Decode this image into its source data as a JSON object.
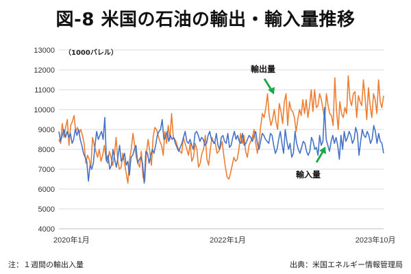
{
  "chart_data": {
    "type": "line",
    "title": "図-8 米国の石油の輸出・輸入量推移",
    "unit_label": "（1000バレル）",
    "ylim": [
      4000,
      13000
    ],
    "y_ticks": [
      "4000",
      "5000",
      "6000",
      "7000",
      "8000",
      "9000",
      "10000",
      "11000",
      "12000",
      "13000"
    ],
    "x_range": [
      0,
      200
    ],
    "x_ticks": [
      {
        "label": "2020年1月",
        "week": 0
      },
      {
        "label": "2022年1月",
        "week": 104
      },
      {
        "label": "2023年10月",
        "week": 195
      }
    ],
    "grid": true,
    "series": [
      {
        "name": "輸出量",
        "color": "#ed7d31",
        "values": [
          8500,
          8300,
          9300,
          8600,
          9100,
          9500,
          8200,
          9200,
          9400,
          9700,
          8900,
          9100,
          8800,
          9000,
          8700,
          8300,
          7300,
          7700,
          7500,
          7100,
          8600,
          8200,
          7900,
          7600,
          8000,
          7400,
          7700,
          8200,
          7500,
          7300,
          7900,
          7600,
          7200,
          7700,
          8600,
          7400,
          7000,
          7100,
          7800,
          7300,
          6800,
          6300,
          7500,
          8000,
          8800,
          8200,
          7600,
          7300,
          7100,
          7900,
          6600,
          6400,
          7800,
          8500,
          7900,
          7200,
          8600,
          9100,
          9000,
          8700,
          8400,
          8200,
          7700,
          8900,
          8300,
          9200,
          8500,
          9800,
          8600,
          8500,
          8300,
          8000,
          7900,
          7800,
          8600,
          8300,
          8000,
          7700,
          8300,
          7400,
          7600,
          8300,
          8000,
          7100,
          7300,
          7800,
          8000,
          8700,
          7500,
          7200,
          8000,
          8600,
          8300,
          8300,
          7800,
          7900,
          8100,
          8400,
          7700,
          7100,
          6600,
          6500,
          6800,
          7200,
          7600,
          7400,
          7500,
          8000,
          8800,
          8300,
          8700,
          7900,
          7600,
          8200,
          8400,
          8600,
          9000,
          8300,
          7800,
          8400,
          9200,
          9800,
          9600,
          10100,
          10800,
          9700,
          9200,
          9500,
          10000,
          9400,
          9000,
          10300,
          9900,
          9300,
          10400,
          10800,
          9200,
          10400,
          10000,
          9900,
          9600,
          8900,
          9500,
          10000,
          9700,
          10500,
          9800,
          10500,
          9600,
          10200,
          11000,
          9900,
          11000,
          10100,
          10200,
          10800,
          10500,
          10000,
          9500,
          10800,
          10200,
          9800,
          9700,
          9200,
          11600,
          10000,
          9000,
          10400,
          9800,
          9600,
          10100,
          9800,
          11700,
          10500,
          10200,
          10800,
          10900,
          9600,
          10700,
          10400,
          10200,
          11500,
          10600,
          9500,
          11100,
          10200,
          9600,
          10800,
          10500,
          9800,
          11500,
          10400,
          10100,
          10700
        ]
      },
      {
        "name": "輸入量",
        "color": "#4472c4",
        "values": [
          8900,
          8400,
          8700,
          9000,
          8600,
          8900,
          8600,
          8800,
          8300,
          8500,
          9000,
          8700,
          9000,
          8500,
          8200,
          7800,
          7600,
          7400,
          6400,
          7200,
          7000,
          7300,
          8200,
          8900,
          8500,
          8700,
          8900,
          8500,
          9600,
          7400,
          7700,
          7000,
          7200,
          8000,
          7500,
          7100,
          7600,
          8200,
          7400,
          7500,
          7800,
          7200,
          7400,
          6700,
          7600,
          7700,
          8000,
          8200,
          7300,
          7500,
          7600,
          7300,
          6300,
          7900,
          7800,
          7300,
          7700,
          8000,
          7800,
          8200,
          8700,
          8900,
          9000,
          9500,
          8500,
          8600,
          8900,
          8400,
          8700,
          8500,
          8600,
          8300,
          8100,
          7900,
          8100,
          8300,
          8600,
          8900,
          8400,
          8300,
          8500,
          8200,
          8000,
          8800,
          8900,
          8700,
          8400,
          8600,
          8500,
          8200,
          8300,
          8700,
          8900,
          8500,
          8400,
          8300,
          8800,
          8200,
          8000,
          8600,
          8700,
          8400,
          8300,
          8800,
          8100,
          8200,
          8600,
          8900,
          8500,
          8700,
          8400,
          8300,
          8800,
          8200,
          8300,
          8500,
          8700,
          8600,
          8400,
          8700,
          8900,
          8300,
          8000,
          8400,
          8800,
          8700,
          8500,
          8400,
          8300,
          8800,
          8700,
          8200,
          7800,
          8000,
          8500,
          8900,
          8300,
          7800,
          9000,
          8400,
          8000,
          8300,
          7600,
          7800,
          8900,
          8300,
          8000,
          7800,
          8100,
          8400,
          8300,
          7900,
          7700,
          7900,
          8600,
          8400,
          8000,
          8100,
          7700,
          8700,
          8200,
          8400,
          10100,
          8500,
          8200,
          7900,
          8400,
          8700,
          8300,
          8600,
          8200,
          7500,
          8700,
          8000,
          8900,
          8400,
          8600,
          8900,
          8700,
          8300,
          8500,
          9100,
          8800,
          7700,
          8400,
          9000,
          8700,
          8600,
          8900,
          8700,
          8300,
          8500,
          9200,
          8900,
          8300,
          8800,
          8400,
          8300,
          7800
        ]
      }
    ],
    "annotations": [
      {
        "text": "輸出量",
        "series": "輸出量"
      },
      {
        "text": "輸入量",
        "series": "輸入量"
      }
    ]
  },
  "footer": {
    "note": "注：１週間の輸出入量",
    "source": "出典：米国エネルギー情報管理局"
  }
}
